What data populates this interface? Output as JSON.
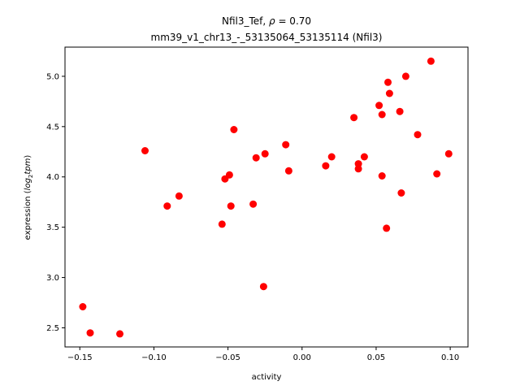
{
  "chart_data": {
    "type": "scatter",
    "title_line1_prefix": "Nfil3_Tef, ",
    "title_rho_symbol": "ρ",
    "title_rho_value": " = 0.70",
    "title_line2": "mm39_v1_chr13_-_53135064_53135114 (Nfil3)",
    "xlabel": "activity",
    "ylabel_prefix": "expression (",
    "ylabel_math_base": "log",
    "ylabel_math_sub": "2",
    "ylabel_math_rest": "tpm",
    "ylabel_suffix": ")",
    "xlim": [
      -0.16,
      0.112
    ],
    "ylim": [
      2.31,
      5.29
    ],
    "x_ticks": [
      -0.15,
      -0.1,
      -0.05,
      0.0,
      0.05,
      0.1
    ],
    "x_tick_labels": [
      "−0.15",
      "−0.10",
      "−0.05",
      "0.00",
      "0.05",
      "0.10"
    ],
    "y_ticks": [
      2.5,
      3.0,
      3.5,
      4.0,
      4.5,
      5.0
    ],
    "y_tick_labels": [
      "2.5",
      "3.0",
      "3.5",
      "4.0",
      "4.5",
      "5.0"
    ],
    "marker_color": "#ff0000",
    "points": [
      {
        "x": -0.148,
        "y": 2.71
      },
      {
        "x": -0.143,
        "y": 2.45
      },
      {
        "x": -0.123,
        "y": 2.44
      },
      {
        "x": -0.106,
        "y": 4.26
      },
      {
        "x": -0.091,
        "y": 3.71
      },
      {
        "x": -0.083,
        "y": 3.81
      },
      {
        "x": -0.054,
        "y": 3.53
      },
      {
        "x": -0.052,
        "y": 3.98
      },
      {
        "x": -0.049,
        "y": 4.02
      },
      {
        "x": -0.048,
        "y": 3.71
      },
      {
        "x": -0.046,
        "y": 4.47
      },
      {
        "x": -0.033,
        "y": 3.73
      },
      {
        "x": -0.031,
        "y": 4.19
      },
      {
        "x": -0.026,
        "y": 2.91
      },
      {
        "x": -0.025,
        "y": 4.23
      },
      {
        "x": -0.011,
        "y": 4.32
      },
      {
        "x": -0.009,
        "y": 4.06
      },
      {
        "x": 0.016,
        "y": 4.11
      },
      {
        "x": 0.02,
        "y": 4.2
      },
      {
        "x": 0.035,
        "y": 4.59
      },
      {
        "x": 0.038,
        "y": 4.13
      },
      {
        "x": 0.038,
        "y": 4.08
      },
      {
        "x": 0.042,
        "y": 4.2
      },
      {
        "x": 0.052,
        "y": 4.71
      },
      {
        "x": 0.054,
        "y": 4.62
      },
      {
        "x": 0.054,
        "y": 4.01
      },
      {
        "x": 0.057,
        "y": 3.49
      },
      {
        "x": 0.058,
        "y": 4.94
      },
      {
        "x": 0.059,
        "y": 4.83
      },
      {
        "x": 0.066,
        "y": 4.65
      },
      {
        "x": 0.067,
        "y": 3.84
      },
      {
        "x": 0.07,
        "y": 5.0
      },
      {
        "x": 0.078,
        "y": 4.42
      },
      {
        "x": 0.087,
        "y": 5.15
      },
      {
        "x": 0.091,
        "y": 4.03
      },
      {
        "x": 0.099,
        "y": 4.23
      }
    ]
  }
}
